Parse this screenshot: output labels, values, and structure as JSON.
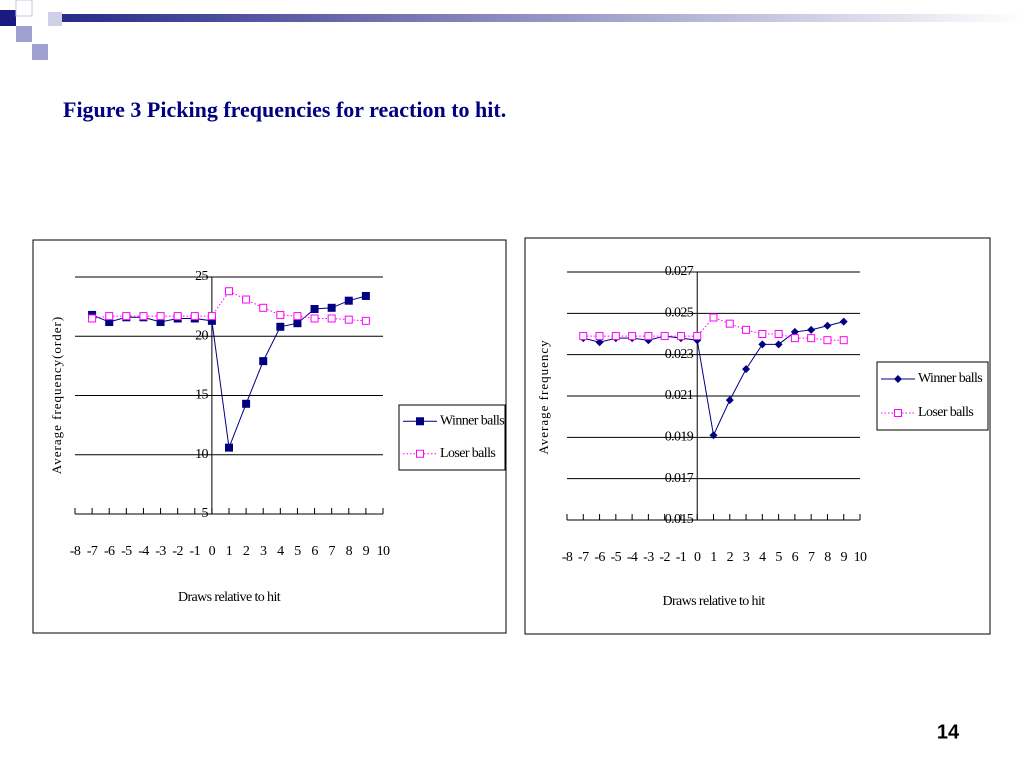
{
  "title": "Figure 3 Picking frequencies for reaction to hit.",
  "page_number": "14",
  "chart_data": [
    {
      "type": "line",
      "x_label": "Draws relative to hit",
      "y_label": "Average frequency(order)",
      "x": [
        -7,
        -6,
        -5,
        -4,
        -3,
        -2,
        -1,
        0,
        1,
        2,
        3,
        4,
        5,
        6,
        7,
        8,
        9
      ],
      "xlim": [
        -8,
        10
      ],
      "xticks": [
        -8,
        -7,
        -6,
        -5,
        -4,
        -3,
        -2,
        -1,
        0,
        1,
        2,
        3,
        4,
        5,
        6,
        7,
        8,
        9,
        10
      ],
      "ylim": [
        5,
        25
      ],
      "yticks": [
        5,
        10,
        15,
        20,
        25
      ],
      "grid": true,
      "yaxis_at": 0,
      "series": [
        {
          "name": "Winner balls",
          "color": "#000080",
          "marker": "square",
          "dash": "solid",
          "values": [
            21.8,
            21.2,
            21.6,
            21.6,
            21.2,
            21.5,
            21.5,
            21.3,
            10.6,
            14.3,
            17.9,
            20.8,
            21.1,
            22.3,
            22.4,
            23.0,
            23.4
          ]
        },
        {
          "name": "Loser balls",
          "color": "#ff00ff",
          "marker": "square-open",
          "dash": "dotted",
          "values": [
            21.5,
            21.7,
            21.7,
            21.7,
            21.7,
            21.7,
            21.7,
            21.7,
            23.8,
            23.1,
            22.4,
            21.8,
            21.7,
            21.5,
            21.5,
            21.4,
            21.3
          ]
        }
      ]
    },
    {
      "type": "line",
      "x_label": "Draws relative to hit",
      "y_label": "Average frequency",
      "x": [
        -7,
        -6,
        -5,
        -4,
        -3,
        -2,
        -1,
        0,
        1,
        2,
        3,
        4,
        5,
        6,
        7,
        8,
        9
      ],
      "xlim": [
        -8,
        10
      ],
      "xticks": [
        -8,
        -7,
        -6,
        -5,
        -4,
        -3,
        -2,
        -1,
        0,
        1,
        2,
        3,
        4,
        5,
        6,
        7,
        8,
        9,
        10
      ],
      "ylim": [
        0.015,
        0.027
      ],
      "yticks": [
        0.015,
        0.017,
        0.019,
        0.021,
        0.023,
        0.025,
        0.027
      ],
      "grid": true,
      "yaxis_at": 0,
      "series": [
        {
          "name": "Winner balls",
          "color": "#000080",
          "marker": "diamond",
          "dash": "solid",
          "values": [
            0.0238,
            0.0236,
            0.0238,
            0.0238,
            0.0237,
            0.0239,
            0.0238,
            0.0237,
            0.0191,
            0.0208,
            0.0223,
            0.0235,
            0.0235,
            0.0241,
            0.0242,
            0.0244,
            0.0246
          ]
        },
        {
          "name": "Loser balls",
          "color": "#ff00ff",
          "marker": "square-open",
          "dash": "dotted",
          "values": [
            0.0239,
            0.0239,
            0.0239,
            0.0239,
            0.0239,
            0.0239,
            0.0239,
            0.0239,
            0.0248,
            0.0245,
            0.0242,
            0.024,
            0.024,
            0.0238,
            0.0238,
            0.0237,
            0.0237
          ]
        }
      ]
    }
  ]
}
